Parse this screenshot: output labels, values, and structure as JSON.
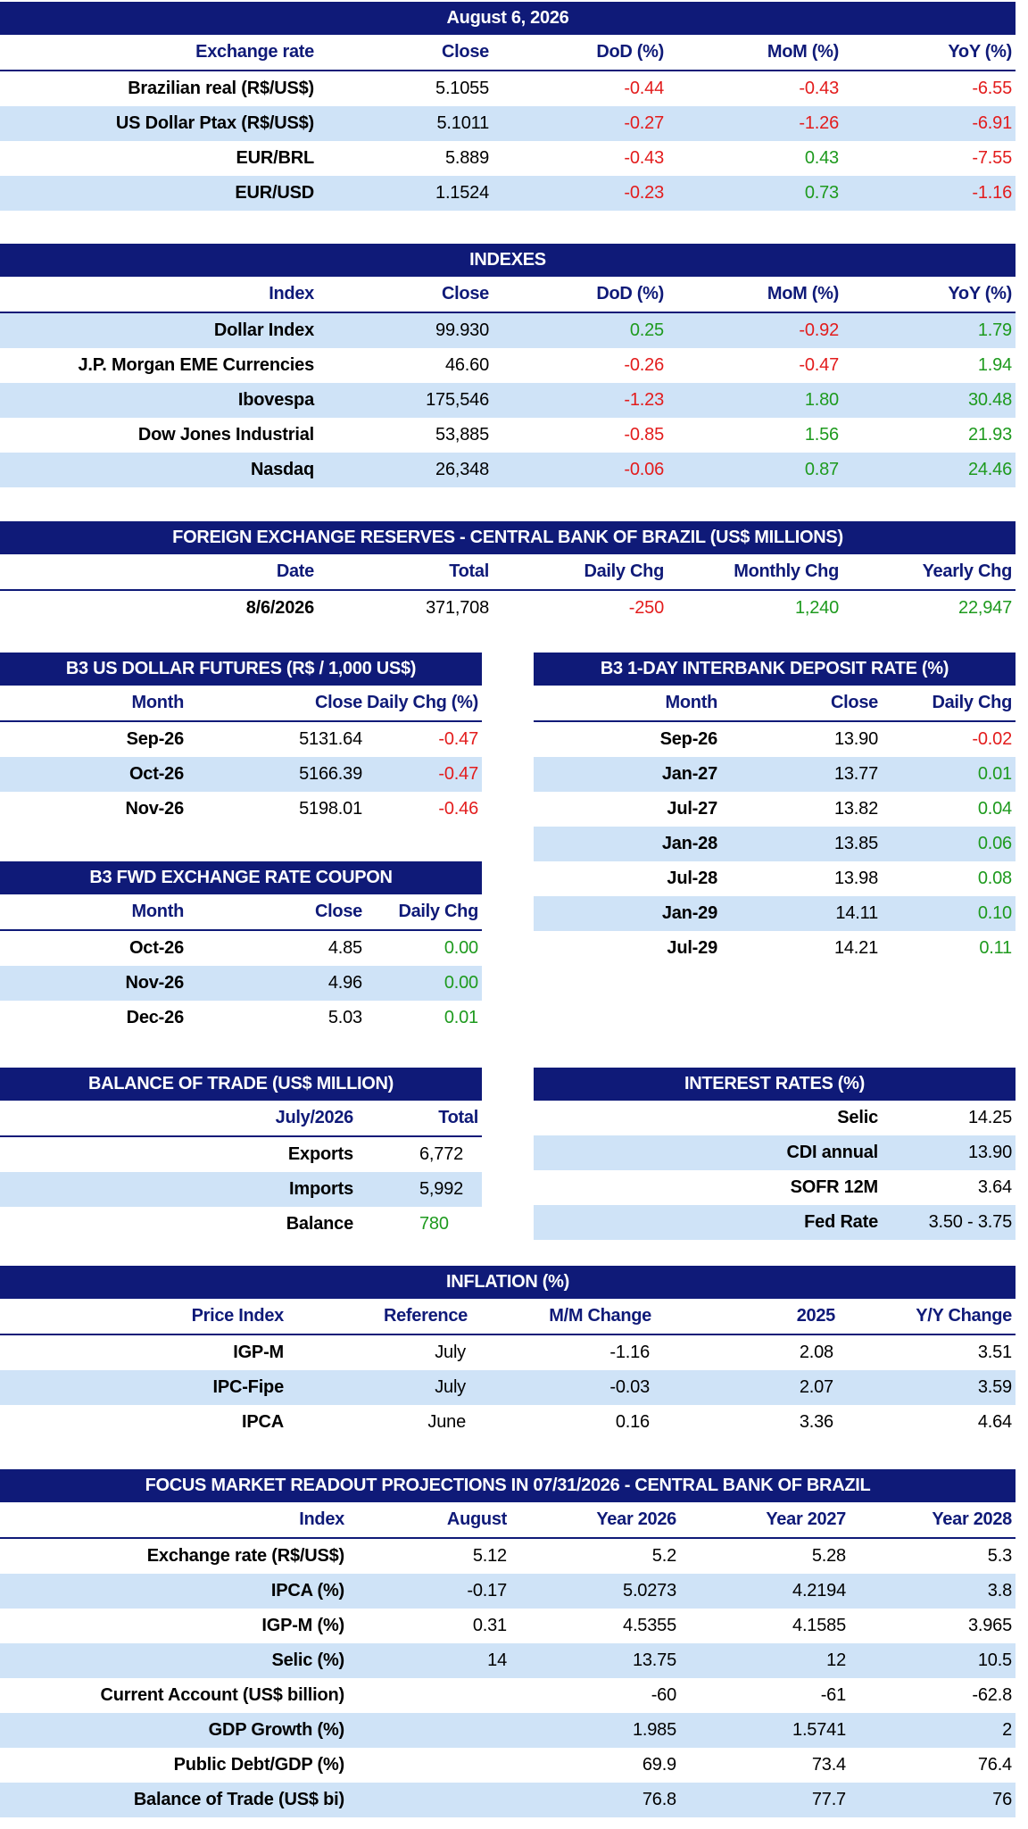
{
  "colors": {
    "header_bg": "#0f1a78",
    "alt_row": "#cfe3f7",
    "negative": "#e31c1c",
    "positive": "#1e9a1e"
  },
  "exchange": {
    "title": "August 6, 2026",
    "headers": [
      "Exchange rate",
      "Close",
      "DoD (%)",
      "MoM (%)",
      "YoY (%)"
    ],
    "rows": [
      [
        "Brazilian real (R$/US$)",
        "5.1055",
        "-0.44",
        "-0.43",
        "-6.55"
      ],
      [
        "US Dollar Ptax (R$/US$)",
        "5.1011",
        "-0.27",
        "-1.26",
        "-6.91"
      ],
      [
        "EUR/BRL",
        "5.889",
        "-0.43",
        "0.43",
        "-7.55"
      ],
      [
        "EUR/USD",
        "1.1524",
        "-0.23",
        "0.73",
        "-1.16"
      ]
    ]
  },
  "indexes": {
    "title": "INDEXES",
    "headers": [
      "Index",
      "Close",
      "DoD (%)",
      "MoM (%)",
      "YoY (%)"
    ],
    "rows": [
      [
        "Dollar Index",
        "99.930",
        "0.25",
        "-0.92",
        "1.79"
      ],
      [
        "J.P. Morgan EME Currencies",
        "46.60",
        "-0.26",
        "-0.47",
        "1.94"
      ],
      [
        "Ibovespa",
        "175,546",
        "-1.23",
        "1.80",
        "30.48"
      ],
      [
        "Dow Jones Industrial",
        "53,885",
        "-0.85",
        "1.56",
        "21.93"
      ],
      [
        "Nasdaq",
        "26,348",
        "-0.06",
        "0.87",
        "24.46"
      ]
    ]
  },
  "reserves": {
    "title": "FOREIGN EXCHANGE RESERVES - CENTRAL BANK OF BRAZIL (US$ MILLIONS)",
    "headers": [
      "Date",
      "Total",
      "Daily Chg",
      "Monthly Chg",
      "Yearly Chg"
    ],
    "rows": [
      [
        "8/6/2026",
        "371,708",
        "-250",
        "1,240",
        "22,947"
      ]
    ]
  },
  "usd_futures": {
    "title": "B3 US DOLLAR FUTURES (R$ / 1,000 US$)",
    "headers": [
      "Month",
      "Close",
      "Daily Chg (%)"
    ],
    "rows": [
      [
        "Sep-26",
        "5131.64",
        "-0.47"
      ],
      [
        "Oct-26",
        "5166.39",
        "-0.47"
      ],
      [
        "Nov-26",
        "5198.01",
        "-0.46"
      ]
    ]
  },
  "di_rate": {
    "title": "B3 1-DAY INTERBANK DEPOSIT RATE (%)",
    "headers": [
      "Month",
      "Close",
      "Daily Chg"
    ],
    "rows": [
      [
        "Sep-26",
        "13.90",
        "-0.02"
      ],
      [
        "Jan-27",
        "13.77",
        "0.01"
      ],
      [
        "Jul-27",
        "13.82",
        "0.04"
      ],
      [
        "Jan-28",
        "13.85",
        "0.06"
      ],
      [
        "Jul-28",
        "13.98",
        "0.08"
      ],
      [
        "Jan-29",
        "14.11",
        "0.10"
      ],
      [
        "Jul-29",
        "14.21",
        "0.11"
      ]
    ]
  },
  "fwd_coupon": {
    "title": "B3 FWD EXCHANGE RATE COUPON",
    "headers": [
      "Month",
      "Close",
      "Daily Chg"
    ],
    "rows": [
      [
        "Oct-26",
        "4.85",
        "0.00"
      ],
      [
        "Nov-26",
        "4.96",
        "0.00"
      ],
      [
        "Dec-26",
        "5.03",
        "0.01"
      ]
    ]
  },
  "trade": {
    "title": "BALANCE OF TRADE (US$ MILLION)",
    "headers": [
      "July/2026",
      "Total"
    ],
    "rows": [
      [
        "Exports",
        "6,772"
      ],
      [
        "Imports",
        "5,992"
      ],
      [
        "Balance",
        "780"
      ]
    ]
  },
  "interest": {
    "title": "INTEREST RATES (%)",
    "rows": [
      [
        "Selic",
        "14.25"
      ],
      [
        "CDI annual",
        "13.90"
      ],
      [
        "SOFR 12M",
        "3.64"
      ],
      [
        "Fed Rate",
        "3.50 - 3.75"
      ]
    ]
  },
  "inflation": {
    "title": "INFLATION (%)",
    "headers": [
      "Price Index",
      "Reference",
      "M/M Change",
      "2025",
      "Y/Y Change"
    ],
    "rows": [
      [
        "IGP-M",
        "July",
        "-1.16",
        "2.08",
        "3.51"
      ],
      [
        "IPC-Fipe",
        "July",
        "-0.03",
        "2.07",
        "3.59"
      ],
      [
        "IPCA",
        "June",
        "0.16",
        "3.36",
        "4.64"
      ]
    ]
  },
  "focus": {
    "title": "FOCUS MARKET READOUT PROJECTIONS IN 07/31/2026 - CENTRAL BANK OF BRAZIL",
    "headers": [
      "Index",
      "August",
      "Year 2026",
      "Year 2027",
      "Year 2028"
    ],
    "rows": [
      [
        "Exchange rate (R$/US$)",
        "5.12",
        "5.2",
        "5.28",
        "5.3"
      ],
      [
        "IPCA (%)",
        "-0.17",
        "5.0273",
        "4.2194",
        "3.8"
      ],
      [
        "IGP-M (%)",
        "0.31",
        "4.5355",
        "4.1585",
        "3.965"
      ],
      [
        "Selic (%)",
        "14",
        "13.75",
        "12",
        "10.5"
      ],
      [
        "Current Account (US$ billion)",
        "",
        "-60",
        "-61",
        "-62.8"
      ],
      [
        "GDP Growth (%)",
        "",
        "1.985",
        "1.5741",
        "2"
      ],
      [
        "Public Debt/GDP (%)",
        "",
        "69.9",
        "73.4",
        "76.4"
      ],
      [
        "Balance of Trade (US$ bi)",
        "",
        "76.8",
        "77.7",
        "76"
      ]
    ]
  }
}
